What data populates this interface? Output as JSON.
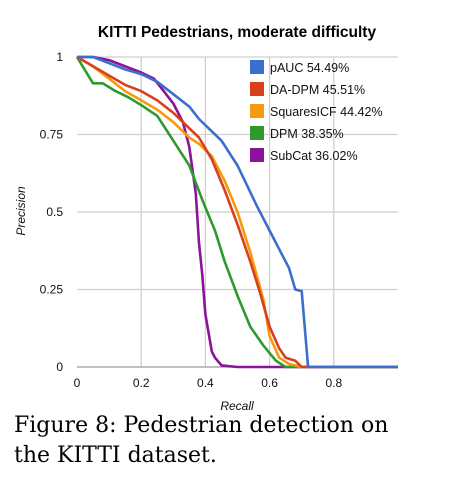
{
  "chart_data": {
    "type": "line",
    "title": "KITTI Pedestrians, moderate difficulty",
    "xlabel": "Recall",
    "ylabel": "Precision",
    "xlim": [
      0,
      1
    ],
    "ylim": [
      0,
      1
    ],
    "xticks": [
      0,
      0.2,
      0.4,
      0.6,
      0.8
    ],
    "xtick_labels": [
      "0",
      "0.2",
      "0.4",
      "0.6",
      "0.8"
    ],
    "yticks": [
      0,
      0.25,
      0.5,
      0.75,
      1
    ],
    "ytick_labels": [
      "0",
      "0.25",
      "0.5",
      "0.75",
      "1"
    ],
    "grid": true,
    "legend_position": "top-right",
    "series": [
      {
        "name": "pAUC 54.49%",
        "color": "#3a6fce",
        "points": [
          [
            0,
            1
          ],
          [
            0.05,
            1
          ],
          [
            0.1,
            0.98
          ],
          [
            0.15,
            0.96
          ],
          [
            0.2,
            0.945
          ],
          [
            0.25,
            0.92
          ],
          [
            0.3,
            0.88
          ],
          [
            0.35,
            0.84
          ],
          [
            0.38,
            0.8
          ],
          [
            0.41,
            0.77
          ],
          [
            0.45,
            0.73
          ],
          [
            0.5,
            0.65
          ],
          [
            0.56,
            0.52
          ],
          [
            0.6,
            0.44
          ],
          [
            0.63,
            0.38
          ],
          [
            0.66,
            0.32
          ],
          [
            0.68,
            0.25
          ],
          [
            0.7,
            0.245
          ],
          [
            0.72,
            0
          ],
          [
            0.75,
            0
          ],
          [
            1,
            0
          ]
        ]
      },
      {
        "name": "DA-DPM 45.51%",
        "color": "#d9401c",
        "points": [
          [
            0,
            1
          ],
          [
            0.05,
            0.97
          ],
          [
            0.1,
            0.94
          ],
          [
            0.15,
            0.91
          ],
          [
            0.2,
            0.89
          ],
          [
            0.25,
            0.86
          ],
          [
            0.3,
            0.82
          ],
          [
            0.35,
            0.77
          ],
          [
            0.38,
            0.74
          ],
          [
            0.42,
            0.67
          ],
          [
            0.46,
            0.57
          ],
          [
            0.5,
            0.46
          ],
          [
            0.54,
            0.34
          ],
          [
            0.57,
            0.24
          ],
          [
            0.6,
            0.13
          ],
          [
            0.63,
            0.06
          ],
          [
            0.65,
            0.03
          ],
          [
            0.68,
            0.02
          ],
          [
            0.7,
            0
          ],
          [
            0.75,
            0
          ],
          [
            1,
            0
          ]
        ]
      },
      {
        "name": "SquaresICF 44.42%",
        "color": "#f59a0e",
        "points": [
          [
            0,
            1
          ],
          [
            0.05,
            0.97
          ],
          [
            0.1,
            0.93
          ],
          [
            0.15,
            0.89
          ],
          [
            0.2,
            0.86
          ],
          [
            0.25,
            0.83
          ],
          [
            0.3,
            0.79
          ],
          [
            0.35,
            0.74
          ],
          [
            0.38,
            0.72
          ],
          [
            0.42,
            0.68
          ],
          [
            0.46,
            0.6
          ],
          [
            0.5,
            0.5
          ],
          [
            0.54,
            0.37
          ],
          [
            0.58,
            0.22
          ],
          [
            0.6,
            0.1
          ],
          [
            0.63,
            0.03
          ],
          [
            0.66,
            0.01
          ],
          [
            0.7,
            0
          ],
          [
            1,
            0
          ]
        ]
      },
      {
        "name": "DPM 38.35%",
        "color": "#2e9a2e",
        "points": [
          [
            0,
            1
          ],
          [
            0.05,
            0.915
          ],
          [
            0.08,
            0.915
          ],
          [
            0.12,
            0.89
          ],
          [
            0.16,
            0.87
          ],
          [
            0.2,
            0.845
          ],
          [
            0.25,
            0.81
          ],
          [
            0.3,
            0.73
          ],
          [
            0.35,
            0.65
          ],
          [
            0.39,
            0.54
          ],
          [
            0.43,
            0.44
          ],
          [
            0.46,
            0.34
          ],
          [
            0.5,
            0.23
          ],
          [
            0.54,
            0.13
          ],
          [
            0.58,
            0.07
          ],
          [
            0.62,
            0.02
          ],
          [
            0.65,
            0
          ],
          [
            1,
            0
          ]
        ]
      },
      {
        "name": "SubCat 36.02%",
        "color": "#8a139a",
        "points": [
          [
            0,
            1
          ],
          [
            0.05,
            1
          ],
          [
            0.1,
            0.99
          ],
          [
            0.15,
            0.97
          ],
          [
            0.2,
            0.95
          ],
          [
            0.24,
            0.93
          ],
          [
            0.27,
            0.89
          ],
          [
            0.3,
            0.85
          ],
          [
            0.33,
            0.79
          ],
          [
            0.35,
            0.71
          ],
          [
            0.37,
            0.56
          ],
          [
            0.38,
            0.4
          ],
          [
            0.39,
            0.3
          ],
          [
            0.4,
            0.17
          ],
          [
            0.42,
            0.05
          ],
          [
            0.43,
            0.03
          ],
          [
            0.45,
            0.005
          ],
          [
            0.5,
            0
          ],
          [
            1,
            0
          ]
        ]
      }
    ]
  },
  "caption": {
    "line1": "Figure 8: Pedestrian detection on",
    "line2": "the KITTI dataset."
  }
}
